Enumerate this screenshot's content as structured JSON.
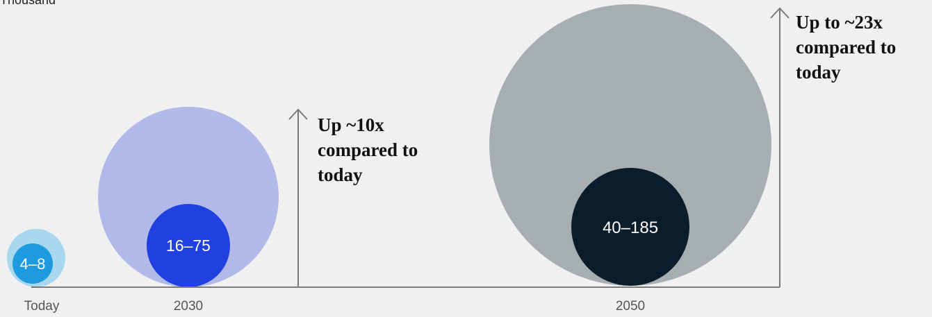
{
  "unit_label": "Thousand",
  "chart_data": {
    "type": "bubble",
    "unit": "Thousand",
    "categories": [
      "Today",
      "2030",
      "2050"
    ],
    "series": [
      {
        "category": "Today",
        "label": "4–8",
        "low": 4,
        "high": 8
      },
      {
        "category": "2030",
        "label": "16–75",
        "low": 16,
        "high": 75
      },
      {
        "category": "2050",
        "label": "40–185",
        "low": 40,
        "high": 185
      }
    ],
    "colors": {
      "today_outer": "#a8d8ee",
      "today_inner": "#1e9be0",
      "y2030_outer": "#b1b9e8",
      "y2030_inner": "#2040e0",
      "y2050_outer": "#a7aeb2",
      "y2050_inner": "#0b1c2b",
      "axis": "#7a7a7a"
    },
    "annotations": [
      {
        "lines": [
          "Up ~10x",
          "compared to",
          "today"
        ]
      },
      {
        "lines": [
          "Up to ~23x",
          "compared to",
          "today"
        ]
      }
    ]
  }
}
